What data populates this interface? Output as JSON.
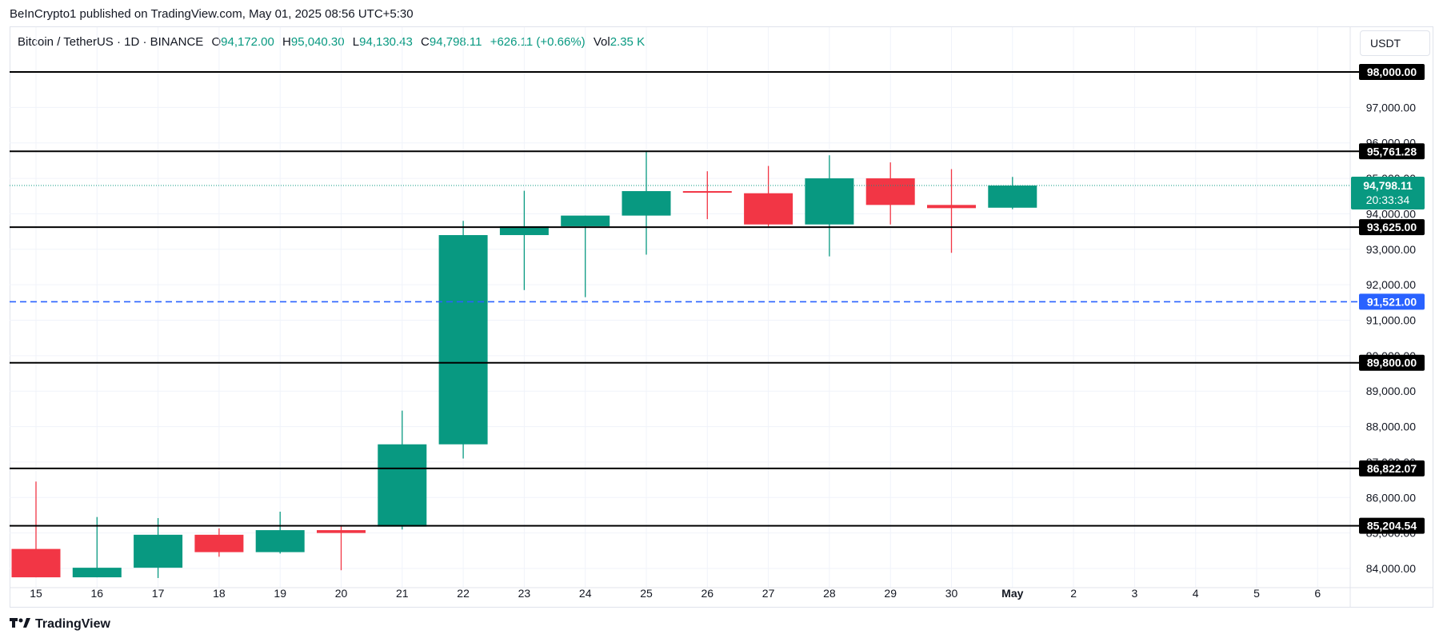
{
  "publisher": "BeInCrypto1 published on TradingView.com, May 01, 2025 08:56 UTC+5:30",
  "legend": {
    "symbol": "Bitcoin / TetherUS · 1D · BINANCE",
    "o_key": "O",
    "o": "94,172.00",
    "h_key": "H",
    "h": "95,040.30",
    "l_key": "L",
    "l": "94,130.43",
    "c_key": "C",
    "c": "94,798.11",
    "change": "+626.11 (+0.66%)",
    "vol_key": "Vol",
    "vol": "2.35 K"
  },
  "currency_button": "USDT",
  "branding": {
    "logo_icon": "tradingview-logo-icon",
    "label": "TradingView"
  },
  "colors": {
    "up": "#089981",
    "down": "#f23645",
    "level": "#000000",
    "alert": "#2962ff",
    "grid": "#f0f3fa"
  },
  "chart_data": {
    "type": "candlestick",
    "title": "Bitcoin / TetherUS · 1D · BINANCE",
    "x_ticks": [
      "15",
      "16",
      "17",
      "18",
      "19",
      "20",
      "21",
      "22",
      "23",
      "24",
      "25",
      "26",
      "27",
      "28",
      "29",
      "30",
      "May",
      "2",
      "3",
      "4",
      "5",
      "6"
    ],
    "y_ticks": [
      "84,000.00",
      "85,000.00",
      "86,000.00",
      "87,000.00",
      "88,000.00",
      "89,000.00",
      "90,000.00",
      "91,000.00",
      "92,000.00",
      "93,000.00",
      "94,000.00",
      "95,000.00",
      "96,000.00",
      "97,000.00"
    ],
    "ylim": [
      83700,
      99000
    ],
    "grid": true,
    "candles": [
      {
        "x": "15",
        "o": 84550,
        "h": 86450,
        "l": 83750,
        "c": 83750
      },
      {
        "x": "16",
        "o": 83750,
        "h": 85450,
        "l": 83750,
        "c": 84020
      },
      {
        "x": "17",
        "o": 84020,
        "h": 85420,
        "l": 83730,
        "c": 84950
      },
      {
        "x": "18",
        "o": 84950,
        "h": 85130,
        "l": 84330,
        "c": 84460
      },
      {
        "x": "19",
        "o": 84460,
        "h": 85600,
        "l": 84420,
        "c": 85080
      },
      {
        "x": "20",
        "o": 85080,
        "h": 85220,
        "l": 83950,
        "c": 85000
      },
      {
        "x": "21",
        "o": 85180,
        "h": 88450,
        "l": 85100,
        "c": 87500
      },
      {
        "x": "22",
        "o": 87500,
        "h": 93800,
        "l": 87100,
        "c": 93400
      },
      {
        "x": "23",
        "o": 93400,
        "h": 94650,
        "l": 91850,
        "c": 93650
      },
      {
        "x": "24",
        "o": 93650,
        "h": 93950,
        "l": 91650,
        "c": 93950
      },
      {
        "x": "25",
        "o": 93950,
        "h": 95750,
        "l": 92850,
        "c": 94640
      },
      {
        "x": "26",
        "o": 94640,
        "h": 95200,
        "l": 93850,
        "c": 94610
      },
      {
        "x": "27",
        "o": 94580,
        "h": 95350,
        "l": 93650,
        "c": 93700
      },
      {
        "x": "28",
        "o": 93700,
        "h": 95650,
        "l": 92800,
        "c": 95000
      },
      {
        "x": "29",
        "o": 95000,
        "h": 95450,
        "l": 93700,
        "c": 94250
      },
      {
        "x": "30",
        "o": 94250,
        "h": 95260,
        "l": 92900,
        "c": 94160
      },
      {
        "x": "May",
        "o": 94172,
        "h": 95040.3,
        "l": 94130.43,
        "c": 94798.11
      }
    ],
    "levels": [
      {
        "value": 98000,
        "label": "98,000.00",
        "style": "solid"
      },
      {
        "value": 95761.28,
        "label": "95,761.28",
        "style": "solid"
      },
      {
        "value": 93625,
        "label": "93,625.00",
        "style": "solid"
      },
      {
        "value": 91521,
        "label": "91,521.00",
        "style": "dashed"
      },
      {
        "value": 89800,
        "label": "89,800.00",
        "style": "solid"
      },
      {
        "value": 86822.07,
        "label": "86,822.07",
        "style": "solid"
      },
      {
        "value": 85204.54,
        "label": "85,204.54",
        "style": "solid"
      }
    ],
    "last_price": {
      "value": 94798.11,
      "label": "94,798.11",
      "countdown": "20:33:34"
    }
  }
}
